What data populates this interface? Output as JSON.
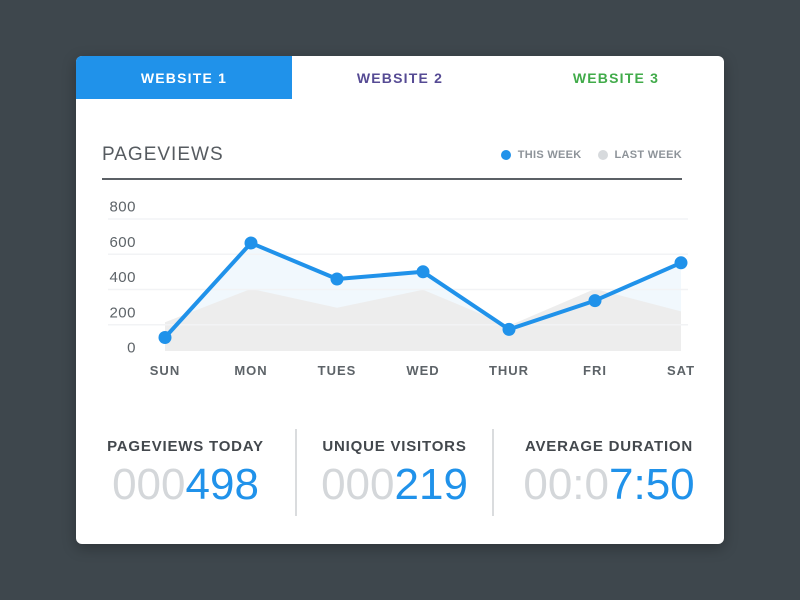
{
  "window": {
    "background": "#3e474d",
    "card_background": "#ffffff"
  },
  "tabs": [
    {
      "label": "WEBSITE 1",
      "active": true,
      "color": "#ffffff",
      "background": "#2092ea"
    },
    {
      "label": "WEBSITE 2",
      "active": false,
      "color": "#564b94"
    },
    {
      "label": "WEBSITE 3",
      "active": false,
      "color": "#41ab4a"
    }
  ],
  "chart": {
    "title": "PAGEVIEWS",
    "legend": [
      {
        "label": "THIS WEEK",
        "color": "#2092ea"
      },
      {
        "label": "LAST WEEK",
        "color": "#d7dadd"
      }
    ]
  },
  "chart_data": {
    "type": "line",
    "categories": [
      "SUN",
      "MON",
      "TUES",
      "WED",
      "THUR",
      "FRI",
      "SAT"
    ],
    "series": [
      {
        "name": "THIS WEEK",
        "values": [
          75,
          600,
          400,
          440,
          120,
          280,
          490
        ],
        "color": "#2092ea",
        "fill": "#e8f4fc",
        "style": "line-with-dots-and-area"
      },
      {
        "name": "LAST WEEK",
        "values": [
          160,
          345,
          240,
          340,
          140,
          345,
          220
        ],
        "color": "#ececec",
        "style": "area"
      }
    ],
    "yticks": [
      0,
      200,
      400,
      600,
      800
    ],
    "ylim": [
      0,
      800
    ],
    "grid": true,
    "legend_position": "top-right"
  },
  "stats": [
    {
      "label": "PAGEVIEWS TODAY",
      "muted": "000",
      "value": "498"
    },
    {
      "label": "UNIQUE VISITORS",
      "muted": "000",
      "value": "219"
    },
    {
      "label": "AVERAGE DURATION",
      "muted": "00:0",
      "value": "7:50"
    }
  ],
  "colors": {
    "accent_blue": "#2092ea",
    "tab_purple": "#564b94",
    "tab_green": "#41ab4a",
    "muted_digit": "#d4d7da",
    "stat_label": "#43484d",
    "axis_text": "#5d6368",
    "title_text": "#565b60",
    "legend_text": "#8d9399",
    "header_rule": "#5b6065",
    "stat_divider": "#dadcde",
    "grid_line": "#f2f3f5",
    "last_week_fill": "#ececec",
    "this_week_fill": "#e8f4fc"
  }
}
